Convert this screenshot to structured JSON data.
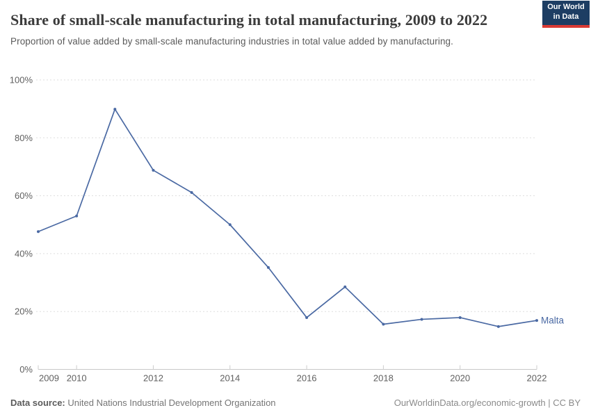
{
  "header": {
    "title": "Share of small-scale manufacturing in total manufacturing, 2009 to 2022",
    "subtitle": "Proportion of value added by small-scale manufacturing industries in total value added by manufacturing."
  },
  "logo": {
    "line1": "Our World",
    "line2": "in Data",
    "bg_color": "#1d3d63",
    "accent_color": "#d93a34"
  },
  "chart_data": {
    "type": "line",
    "title": "Share of small-scale manufacturing in total manufacturing, 2009 to 2022",
    "subtitle": "Proportion of value added by small-scale manufacturing industries in total value added by manufacturing.",
    "x": [
      2009,
      2010,
      2011,
      2012,
      2013,
      2014,
      2015,
      2016,
      2017,
      2018,
      2019,
      2020,
      2021,
      2022
    ],
    "series": [
      {
        "name": "Malta",
        "color": "#4a69a3",
        "values": [
          47.6,
          53.0,
          89.9,
          68.8,
          61.1,
          50.0,
          35.2,
          17.9,
          28.5,
          15.6,
          17.3,
          17.9,
          14.8,
          16.9
        ]
      }
    ],
    "xlim": [
      2009,
      2022
    ],
    "ylim": [
      0,
      100
    ],
    "yticks": [
      0,
      20,
      40,
      60,
      80,
      100
    ],
    "ytick_suffix": "%",
    "xticks": [
      2009,
      2010,
      2012,
      2014,
      2016,
      2018,
      2020,
      2022
    ],
    "grid": "horizontal-dashed",
    "grid_color": "#dddddd",
    "axis_color": "#c8c8c8",
    "tick_label_color": "#606060",
    "legend_position": "line-end-label"
  },
  "footer": {
    "source_label": "Data source:",
    "source_value": "United Nations Industrial Development Organization",
    "credit": "OurWorldinData.org/economic-growth | CC BY"
  }
}
